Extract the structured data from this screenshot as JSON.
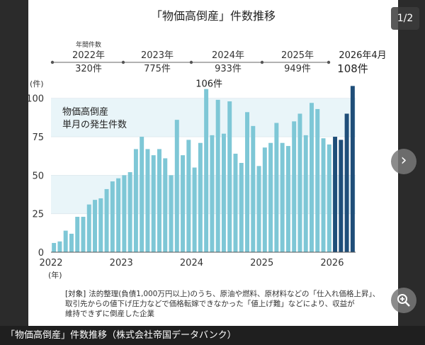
{
  "chart_data": {
    "type": "bar",
    "title": "「物価高倒産」件数推移",
    "ylabel": "(件)",
    "xunit": "(年)",
    "ylim": [
      0,
      110
    ],
    "yticks": [
      0,
      25,
      50,
      75,
      100
    ],
    "annotation": [
      "物価高倒産",
      "単月の発生件数"
    ],
    "peak_label": "106件",
    "x_tick_labels": [
      "2022",
      "2023",
      "2024",
      "2025",
      "2026"
    ],
    "summary_title": "年間件数",
    "summary": [
      {
        "year": "2022年",
        "count": "320件"
      },
      {
        "year": "2023年",
        "count": "775件"
      },
      {
        "year": "2024年",
        "count": "933件"
      },
      {
        "year": "2025年",
        "count": "949件"
      },
      {
        "year": "2026年4月",
        "count": "108件"
      }
    ],
    "colors": {
      "bar": "#7ec7d6",
      "bar_2026": "#1f4e79",
      "band": "#e9f5f9"
    },
    "months": [
      "2022-01",
      "2022-02",
      "2022-03",
      "2022-04",
      "2022-05",
      "2022-06",
      "2022-07",
      "2022-08",
      "2022-09",
      "2022-10",
      "2022-11",
      "2022-12",
      "2023-01",
      "2023-02",
      "2023-03",
      "2023-04",
      "2023-05",
      "2023-06",
      "2023-07",
      "2023-08",
      "2023-09",
      "2023-10",
      "2023-11",
      "2023-12",
      "2024-01",
      "2024-02",
      "2024-03",
      "2024-04",
      "2024-05",
      "2024-06",
      "2024-07",
      "2024-08",
      "2024-09",
      "2024-10",
      "2024-11",
      "2024-12",
      "2025-01",
      "2025-02",
      "2025-03",
      "2025-04",
      "2025-05",
      "2025-06",
      "2025-07",
      "2025-08",
      "2025-09",
      "2025-10",
      "2025-11",
      "2025-12",
      "2026-01",
      "2026-02",
      "2026-03",
      "2026-04"
    ],
    "values": [
      6,
      7,
      14,
      12,
      23,
      23,
      31,
      34,
      35,
      41,
      46,
      48,
      50,
      52,
      67,
      75,
      67,
      63,
      67,
      61,
      50,
      86,
      63,
      73,
      55,
      71,
      106,
      76,
      99,
      77,
      98,
      64,
      58,
      91,
      82,
      56,
      68,
      71,
      84,
      71,
      69,
      85,
      90,
      76,
      97,
      93,
      74,
      70,
      75,
      73,
      90,
      108
    ]
  },
  "note": {
    "tag": "[対象]",
    "lines": [
      "法的整理(負債1,000万円以上)のうち、原油や燃料、原材料などの「仕入れ価格上昇」、",
      "取引先からの値下げ圧力などで価格転嫁できなかった「値上げ難」などにより、収益が",
      "維持できずに倒産した企業"
    ]
  },
  "caption": "「物価高倒産」件数推移（株式会社帝国データバンク）",
  "viewer": {
    "page": "1/2",
    "next_icon": "chevron-right-icon",
    "zoom_icon": "zoom-in-icon"
  }
}
